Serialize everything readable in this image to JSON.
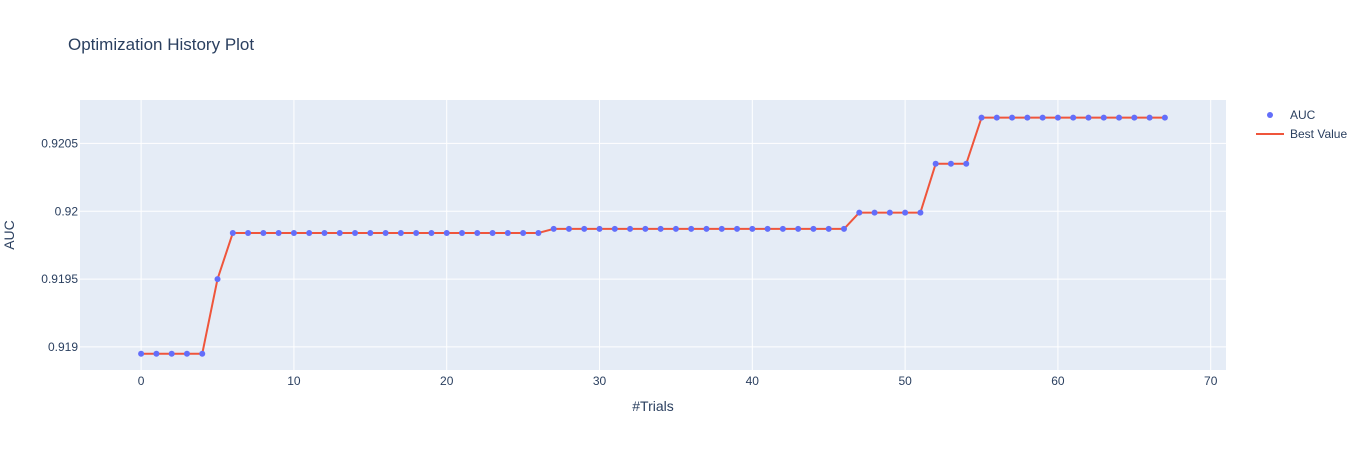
{
  "chart_data": {
    "type": "line",
    "title": "Optimization History Plot",
    "xlabel": "#Trials",
    "ylabel": "AUC",
    "xlim": [
      -4,
      71
    ],
    "ylim": [
      0.91883,
      0.92082
    ],
    "x_ticks": [
      0,
      10,
      20,
      30,
      40,
      50,
      60,
      70
    ],
    "x_tick_labels": [
      "0",
      "10",
      "20",
      "30",
      "40",
      "50",
      "60",
      "70"
    ],
    "y_ticks": [
      0.919,
      0.9195,
      0.92,
      0.9205
    ],
    "y_tick_labels": [
      "0.919",
      "0.9195",
      "0.92",
      "0.9205"
    ],
    "grid": true,
    "legend": "right",
    "colors": {
      "plot_bg": "#e5ecf6",
      "grid": "#ffffff",
      "auc_marker": "#636efa",
      "best_line": "#ef553b",
      "text": "#2a3f5f"
    },
    "series": [
      {
        "name": "AUC",
        "mode": "markers",
        "x": [
          0,
          1,
          2,
          3,
          4,
          5,
          6,
          7,
          8,
          9,
          10,
          11,
          12,
          13,
          14,
          15,
          16,
          17,
          18,
          19,
          20,
          21,
          22,
          23,
          24,
          25,
          26,
          27,
          28,
          29,
          30,
          31,
          32,
          33,
          34,
          35,
          36,
          37,
          38,
          39,
          40,
          41,
          42,
          43,
          44,
          45,
          46,
          47,
          48,
          49,
          50,
          51,
          52,
          53,
          54,
          55,
          56,
          57,
          58,
          59,
          60,
          61,
          62,
          63,
          64,
          65,
          66,
          67
        ],
        "y": [
          0.91895,
          0.91895,
          0.91895,
          0.91895,
          0.91895,
          0.9195,
          0.91984,
          0.91984,
          0.91984,
          0.91984,
          0.91984,
          0.91984,
          0.91984,
          0.91984,
          0.91984,
          0.91984,
          0.91984,
          0.91984,
          0.91984,
          0.91984,
          0.91984,
          0.91984,
          0.91984,
          0.91984,
          0.91984,
          0.91984,
          0.91984,
          0.91987,
          0.91987,
          0.91987,
          0.91987,
          0.91987,
          0.91987,
          0.91987,
          0.91987,
          0.91987,
          0.91987,
          0.91987,
          0.91987,
          0.91987,
          0.91987,
          0.91987,
          0.91987,
          0.91987,
          0.91987,
          0.91987,
          0.91987,
          0.91999,
          0.91999,
          0.91999,
          0.91999,
          0.91999,
          0.92035,
          0.92035,
          0.92035,
          0.92069,
          0.92069,
          0.92069,
          0.92069,
          0.92069,
          0.92069,
          0.92069,
          0.92069,
          0.92069,
          0.92069,
          0.92069,
          0.92069,
          0.92069
        ]
      },
      {
        "name": "Best Value",
        "mode": "lines",
        "x": [
          0,
          1,
          2,
          3,
          4,
          5,
          6,
          7,
          8,
          9,
          10,
          11,
          12,
          13,
          14,
          15,
          16,
          17,
          18,
          19,
          20,
          21,
          22,
          23,
          24,
          25,
          26,
          27,
          28,
          29,
          30,
          31,
          32,
          33,
          34,
          35,
          36,
          37,
          38,
          39,
          40,
          41,
          42,
          43,
          44,
          45,
          46,
          47,
          48,
          49,
          50,
          51,
          52,
          53,
          54,
          55,
          56,
          57,
          58,
          59,
          60,
          61,
          62,
          63,
          64,
          65,
          66,
          67
        ],
        "y": [
          0.91895,
          0.91895,
          0.91895,
          0.91895,
          0.91895,
          0.9195,
          0.91984,
          0.91984,
          0.91984,
          0.91984,
          0.91984,
          0.91984,
          0.91984,
          0.91984,
          0.91984,
          0.91984,
          0.91984,
          0.91984,
          0.91984,
          0.91984,
          0.91984,
          0.91984,
          0.91984,
          0.91984,
          0.91984,
          0.91984,
          0.91984,
          0.91987,
          0.91987,
          0.91987,
          0.91987,
          0.91987,
          0.91987,
          0.91987,
          0.91987,
          0.91987,
          0.91987,
          0.91987,
          0.91987,
          0.91987,
          0.91987,
          0.91987,
          0.91987,
          0.91987,
          0.91987,
          0.91987,
          0.91987,
          0.91999,
          0.91999,
          0.91999,
          0.91999,
          0.91999,
          0.92035,
          0.92035,
          0.92035,
          0.92069,
          0.92069,
          0.92069,
          0.92069,
          0.92069,
          0.92069,
          0.92069,
          0.92069,
          0.92069,
          0.92069,
          0.92069,
          0.92069,
          0.92069
        ]
      }
    ]
  }
}
